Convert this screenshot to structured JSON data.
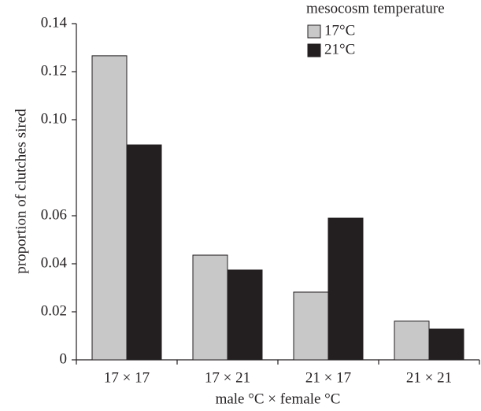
{
  "chart_data": {
    "type": "bar",
    "xlabel": "male °C × female °C",
    "ylabel": "proportion of clutches sired",
    "legend_title": "mesocosm temperature",
    "legend_position": "upper right",
    "categories": [
      "17 × 17",
      "17 × 21",
      "21 × 17",
      "21 × 21"
    ],
    "series": [
      {
        "name": "17°C",
        "color": "#c8c8c8",
        "values": [
          0.1266,
          0.0436,
          0.0282,
          0.0161
        ]
      },
      {
        "name": "21°C",
        "color": "#231f20",
        "values": [
          0.0895,
          0.0374,
          0.059,
          0.0128
        ]
      }
    ],
    "ylim": [
      0,
      0.14
    ],
    "yticks": [
      0,
      0.02,
      0.04,
      0.06,
      {
        "value": 0.1,
        "label": "0.10"
      },
      0.12,
      0.14
    ],
    "grid": false
  }
}
